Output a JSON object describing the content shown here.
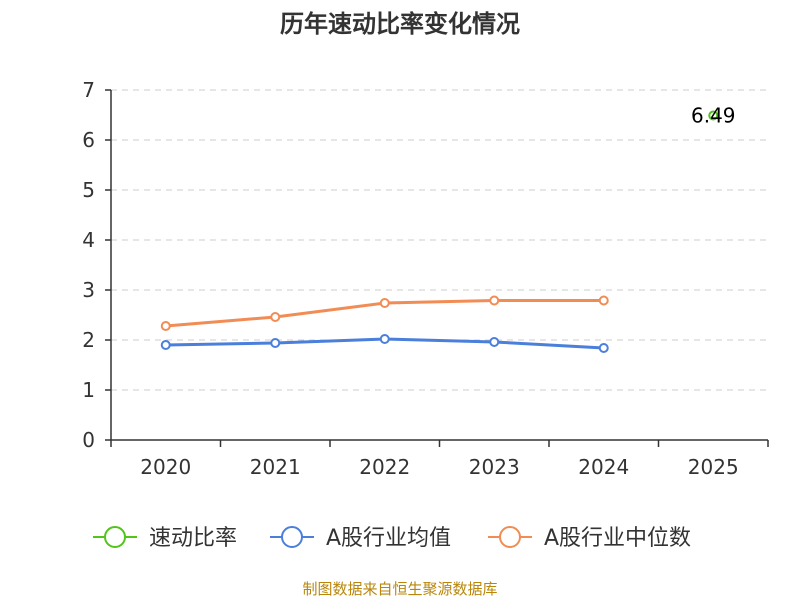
{
  "chart_data": {
    "type": "line",
    "title": "历年速动比率变化情况",
    "categories": [
      "2020",
      "2021",
      "2022",
      "2023",
      "2024",
      "2025"
    ],
    "ylim": [
      0,
      7
    ],
    "yticks": [
      0,
      1,
      2,
      3,
      4,
      5,
      6,
      7
    ],
    "grid": true,
    "legend_position": "bottom",
    "series": [
      {
        "name": "速动比率",
        "color": "#52c41a",
        "values": [
          null,
          null,
          null,
          null,
          null,
          6.49
        ],
        "labels": [
          null,
          null,
          null,
          null,
          null,
          "6.49"
        ]
      },
      {
        "name": "A股行业均值",
        "color": "#4a7fdb",
        "values": [
          1.9,
          1.94,
          2.02,
          1.96,
          1.84,
          null
        ]
      },
      {
        "name": "A股行业中位数",
        "color": "#f28c55",
        "values": [
          2.28,
          2.46,
          2.74,
          2.79,
          2.79,
          null
        ]
      }
    ]
  },
  "source_text": "制图数据来自恒生聚源数据库"
}
